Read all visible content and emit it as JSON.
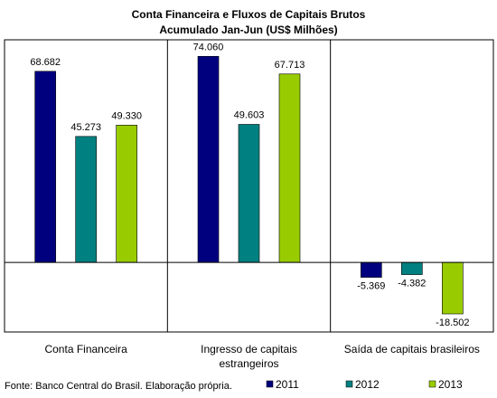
{
  "chart_data": {
    "type": "bar",
    "title_line1": "Conta Financeira e Fluxos de Capitais Brutos",
    "title_line2": "Acumulado Jan-Jun (US$ Milhões)",
    "categories": [
      [
        "Conta Financeira"
      ],
      [
        "Ingresso de capitais",
        "estrangeiros"
      ],
      [
        "Saída de capitais brasileiros"
      ]
    ],
    "series": [
      {
        "name": "2011",
        "color": "#00007f",
        "values": [
          68682,
          74060,
          -5369
        ],
        "labels": [
          "68.682",
          "74.060",
          "-5.369"
        ]
      },
      {
        "name": "2012",
        "color": "#008080",
        "values": [
          45273,
          49603,
          -4382
        ],
        "labels": [
          "45.273",
          "49.603",
          "-4.382"
        ]
      },
      {
        "name": "2013",
        "color": "#99cc00",
        "values": [
          49330,
          67713,
          -18502
        ],
        "labels": [
          "49.330",
          "67.713",
          "-18.502"
        ]
      }
    ],
    "ylim": [
      -25000,
      80000
    ],
    "grid": false,
    "legend_position": "bottom-right"
  },
  "source_note": "Fonte: Banco Central do Brasil.  Elaboração própria."
}
